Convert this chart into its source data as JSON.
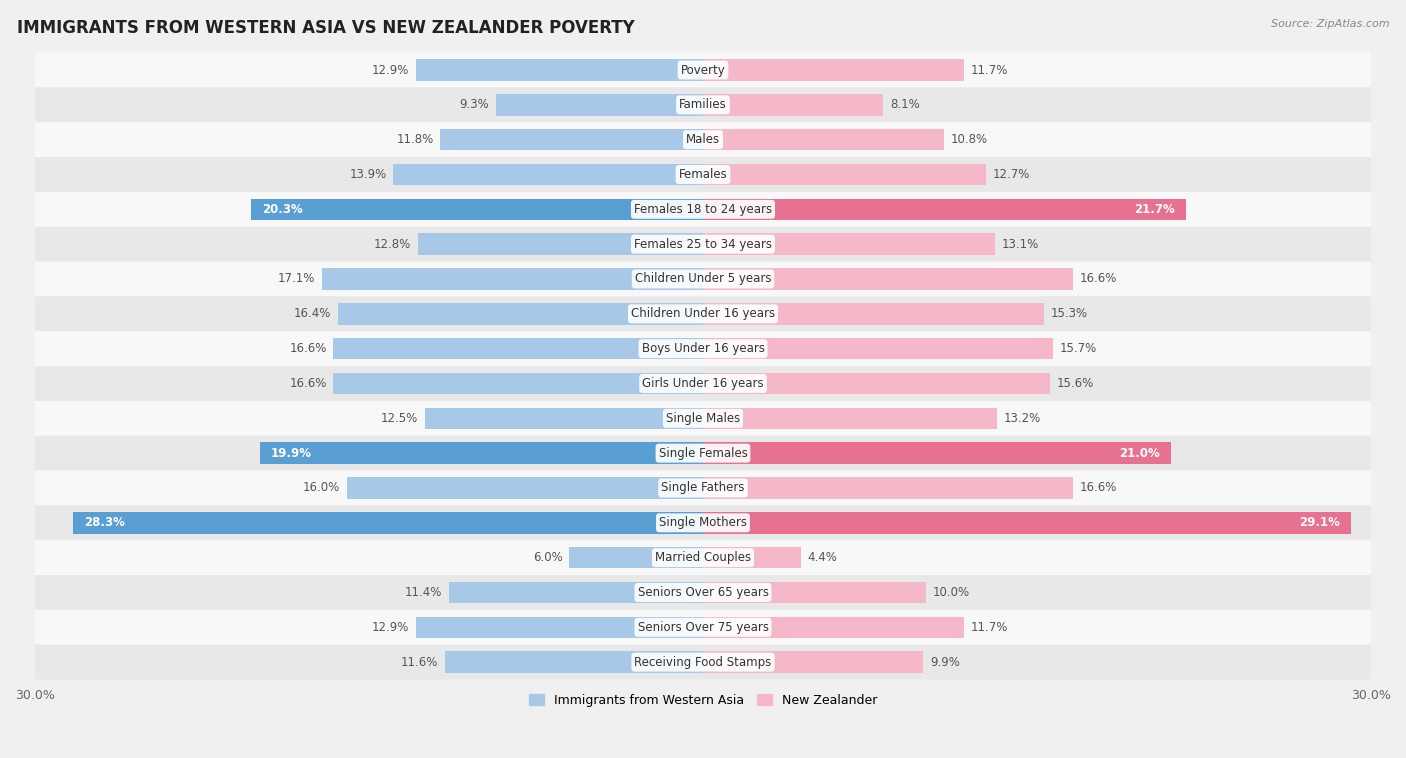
{
  "title": "IMMIGRANTS FROM WESTERN ASIA VS NEW ZEALANDER POVERTY",
  "source": "Source: ZipAtlas.com",
  "categories": [
    "Poverty",
    "Families",
    "Males",
    "Females",
    "Females 18 to 24 years",
    "Females 25 to 34 years",
    "Children Under 5 years",
    "Children Under 16 years",
    "Boys Under 16 years",
    "Girls Under 16 years",
    "Single Males",
    "Single Females",
    "Single Fathers",
    "Single Mothers",
    "Married Couples",
    "Seniors Over 65 years",
    "Seniors Over 75 years",
    "Receiving Food Stamps"
  ],
  "left_values": [
    12.9,
    9.3,
    11.8,
    13.9,
    20.3,
    12.8,
    17.1,
    16.4,
    16.6,
    16.6,
    12.5,
    19.9,
    16.0,
    28.3,
    6.0,
    11.4,
    12.9,
    11.6
  ],
  "right_values": [
    11.7,
    8.1,
    10.8,
    12.7,
    21.7,
    13.1,
    16.6,
    15.3,
    15.7,
    15.6,
    13.2,
    21.0,
    16.6,
    29.1,
    4.4,
    10.0,
    11.7,
    9.9
  ],
  "left_color_normal": "#a8c8e8",
  "right_color_normal": "#f4b8c8",
  "left_color_highlight": "#5a9fd4",
  "right_color_highlight": "#e87090",
  "highlight_rows": [
    4,
    11,
    13
  ],
  "xlim": 30.0,
  "background_color": "#f0f0f0",
  "row_bg_light": "#f8f8f8",
  "row_bg_dark": "#e8e8e8",
  "legend_left": "Immigrants from Western Asia",
  "legend_right": "New Zealander",
  "bar_height": 0.62,
  "title_fontsize": 12,
  "label_fontsize": 8.5,
  "value_fontsize": 8.5,
  "axis_label_fontsize": 9
}
